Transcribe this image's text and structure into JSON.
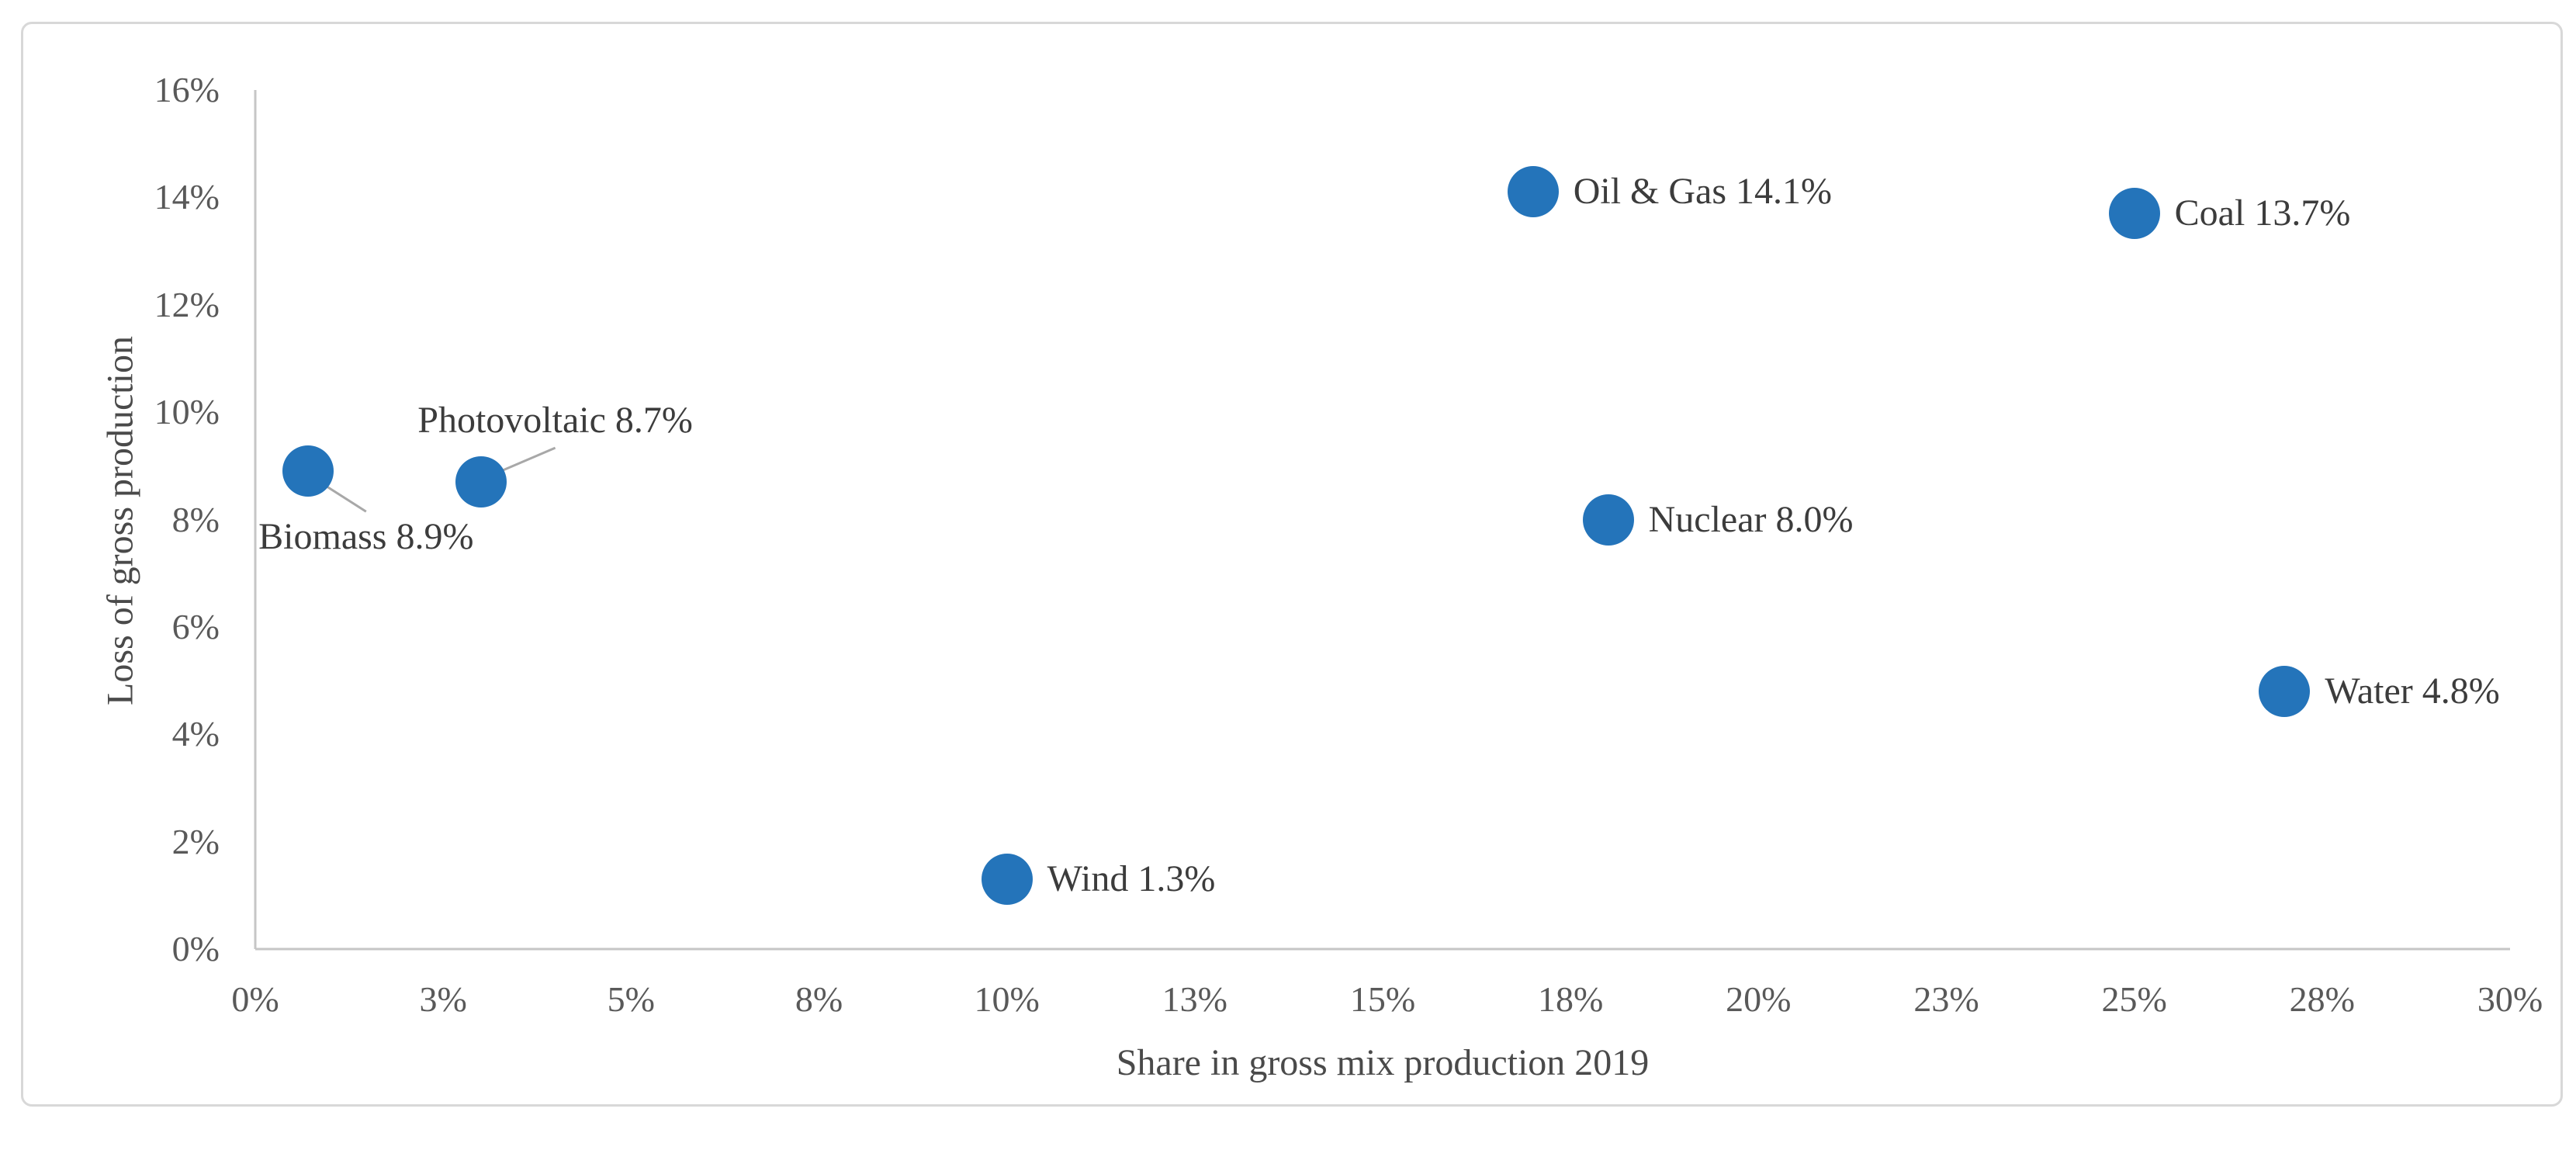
{
  "colors": {
    "marker": "#2474BA",
    "axis_line": "#C6C6C6",
    "tick_text": "#595959",
    "label_text": "#3C3C3C",
    "axis_title_text": "#4A4A4A",
    "leader_line": "#A8A8A8",
    "figure_border": "#D8D8D8",
    "background": "#FFFFFF"
  },
  "chart_data": {
    "type": "scatter",
    "title": "",
    "xlabel": "Share in gross mix production 2019",
    "ylabel": "Loss of gross production",
    "xlim": [
      0,
      30
    ],
    "ylim": [
      0,
      16
    ],
    "grid": false,
    "legend": null,
    "x_ticks": [
      {
        "value": 0,
        "label": "0%"
      },
      {
        "value": 2.5,
        "label": "3%"
      },
      {
        "value": 5,
        "label": "5%"
      },
      {
        "value": 7.5,
        "label": "8%"
      },
      {
        "value": 10,
        "label": "10%"
      },
      {
        "value": 12.5,
        "label": "13%"
      },
      {
        "value": 15,
        "label": "15%"
      },
      {
        "value": 17.5,
        "label": "18%"
      },
      {
        "value": 20,
        "label": "20%"
      },
      {
        "value": 22.5,
        "label": "23%"
      },
      {
        "value": 25,
        "label": "25%"
      },
      {
        "value": 27.5,
        "label": "28%"
      },
      {
        "value": 30,
        "label": "30%"
      }
    ],
    "y_ticks": [
      {
        "value": 0,
        "label": "0%"
      },
      {
        "value": 2,
        "label": "2%"
      },
      {
        "value": 4,
        "label": "4%"
      },
      {
        "value": 6,
        "label": "6%"
      },
      {
        "value": 8,
        "label": "8%"
      },
      {
        "value": 10,
        "label": "10%"
      },
      {
        "value": 12,
        "label": "12%"
      },
      {
        "value": 14,
        "label": "14%"
      },
      {
        "value": 16,
        "label": "16%"
      }
    ],
    "points": [
      {
        "name": "Biomass",
        "x": 0.7,
        "y": 8.9,
        "label": "Biomass 8.9%",
        "label_placement": "below-left"
      },
      {
        "name": "Photovoltaic",
        "x": 3.0,
        "y": 8.7,
        "label": "Photovoltaic 8.7%",
        "label_placement": "above-right"
      },
      {
        "name": "Wind",
        "x": 10.0,
        "y": 1.3,
        "label": "Wind 1.3%",
        "label_placement": "right"
      },
      {
        "name": "Oil & Gas",
        "x": 17.0,
        "y": 14.1,
        "label": "Oil & Gas 14.1%",
        "label_placement": "right"
      },
      {
        "name": "Nuclear",
        "x": 18.0,
        "y": 8.0,
        "label": "Nuclear 8.0%",
        "label_placement": "right"
      },
      {
        "name": "Coal",
        "x": 25.0,
        "y": 13.7,
        "label": "Coal 13.7%",
        "label_placement": "right"
      },
      {
        "name": "Water",
        "x": 27.0,
        "y": 4.8,
        "label": "Water 4.8%",
        "label_placement": "right"
      }
    ]
  }
}
